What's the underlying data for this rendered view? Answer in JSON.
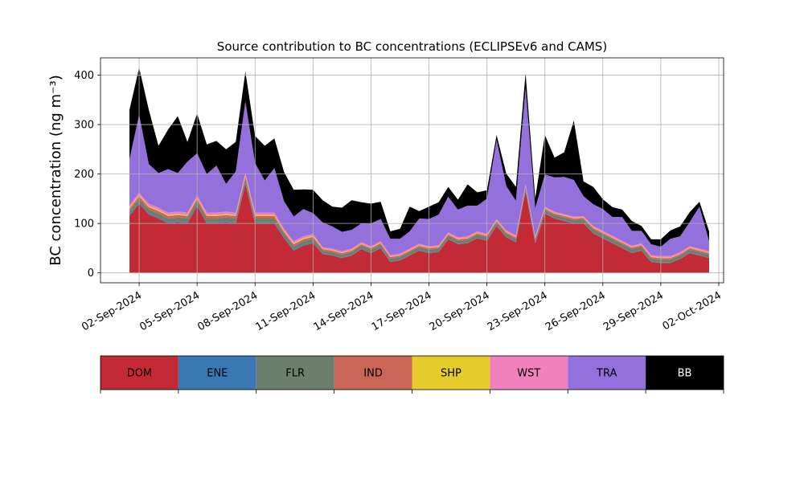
{
  "chart_data": {
    "type": "area",
    "stacked": true,
    "title": "Source contribution to BC concentrations (ECLIPSEv6 and CAMS)",
    "ylabel": "BC concentration (ng m⁻³)",
    "xlabel": "",
    "ylim": [
      -20,
      435
    ],
    "xlim": [
      "2024-08-31T00:00",
      "2024-10-02T06:00"
    ],
    "grid": true,
    "x_ticks": [
      "02-Sep-2024",
      "05-Sep-2024",
      "08-Sep-2024",
      "11-Sep-2024",
      "14-Sep-2024",
      "17-Sep-2024",
      "20-Sep-2024",
      "23-Sep-2024",
      "26-Sep-2024",
      "29-Sep-2024",
      "02-Oct-2024"
    ],
    "y_ticks": [
      0,
      100,
      200,
      300,
      400
    ],
    "x": [
      "2024-09-01T12:00",
      "2024-09-02T00:00",
      "2024-09-02T12:00",
      "2024-09-03T00:00",
      "2024-09-03T12:00",
      "2024-09-04T00:00",
      "2024-09-04T12:00",
      "2024-09-05T00:00",
      "2024-09-05T12:00",
      "2024-09-06T00:00",
      "2024-09-06T12:00",
      "2024-09-07T00:00",
      "2024-09-07T12:00",
      "2024-09-08T00:00",
      "2024-09-08T12:00",
      "2024-09-09T00:00",
      "2024-09-09T12:00",
      "2024-09-10T00:00",
      "2024-09-10T12:00",
      "2024-09-11T00:00",
      "2024-09-11T12:00",
      "2024-09-12T00:00",
      "2024-09-12T12:00",
      "2024-09-13T00:00",
      "2024-09-13T12:00",
      "2024-09-14T00:00",
      "2024-09-14T12:00",
      "2024-09-15T00:00",
      "2024-09-15T12:00",
      "2024-09-16T00:00",
      "2024-09-16T12:00",
      "2024-09-17T00:00",
      "2024-09-17T12:00",
      "2024-09-18T00:00",
      "2024-09-18T12:00",
      "2024-09-19T00:00",
      "2024-09-19T12:00",
      "2024-09-20T00:00",
      "2024-09-20T12:00",
      "2024-09-21T00:00",
      "2024-09-21T12:00",
      "2024-09-22T00:00",
      "2024-09-22T12:00",
      "2024-09-23T00:00",
      "2024-09-23T12:00",
      "2024-09-24T00:00",
      "2024-09-24T12:00",
      "2024-09-25T00:00",
      "2024-09-25T12:00",
      "2024-09-26T00:00",
      "2024-09-26T12:00",
      "2024-09-27T00:00",
      "2024-09-27T12:00",
      "2024-09-28T00:00",
      "2024-09-28T12:00",
      "2024-09-29T00:00",
      "2024-09-29T12:00",
      "2024-09-30T00:00",
      "2024-09-30T12:00",
      "2024-10-01T00:00",
      "2024-10-01T12:00"
    ],
    "series": [
      {
        "name": "DOM",
        "color": "#c42a35",
        "values": [
          115,
          140,
          118,
          110,
          100,
          102,
          100,
          135,
          100,
          100,
          102,
          100,
          180,
          100,
          100,
          100,
          70,
          45,
          55,
          60,
          38,
          35,
          30,
          35,
          48,
          40,
          50,
          22,
          25,
          35,
          45,
          40,
          42,
          68,
          58,
          60,
          70,
          65,
          95,
          72,
          62,
          165,
          60,
          120,
          110,
          105,
          100,
          100,
          80,
          70,
          60,
          50,
          40,
          45,
          22,
          20,
          20,
          28,
          40,
          35,
          30
        ]
      },
      {
        "name": "ENE",
        "color": "#3a78b4",
        "values": [
          2,
          2,
          2,
          2,
          2,
          2,
          2,
          2,
          2,
          2,
          2,
          2,
          2,
          2,
          2,
          2,
          2,
          2,
          2,
          2,
          1,
          1,
          1,
          1,
          1,
          1,
          1,
          1,
          1,
          1,
          1,
          1,
          1,
          1,
          1,
          1,
          1,
          1,
          1,
          1,
          1,
          1,
          1,
          1,
          1,
          1,
          1,
          1,
          1,
          1,
          1,
          1,
          1,
          1,
          1,
          1,
          1,
          1,
          1,
          1,
          1
        ]
      },
      {
        "name": "FLR",
        "color": "#6c7f6f",
        "values": [
          8,
          8,
          8,
          8,
          8,
          8,
          8,
          8,
          8,
          8,
          8,
          8,
          8,
          8,
          8,
          8,
          7,
          7,
          7,
          7,
          6,
          6,
          6,
          6,
          6,
          6,
          6,
          6,
          6,
          6,
          6,
          6,
          6,
          6,
          6,
          6,
          6,
          6,
          6,
          6,
          6,
          6,
          6,
          6,
          6,
          6,
          6,
          7,
          7,
          7,
          7,
          7,
          7,
          7,
          6,
          6,
          6,
          6,
          6,
          6,
          6
        ]
      },
      {
        "name": "IND",
        "color": "#c96656",
        "values": [
          5,
          5,
          5,
          5,
          5,
          5,
          5,
          5,
          5,
          5,
          5,
          5,
          5,
          5,
          5,
          5,
          4,
          4,
          4,
          4,
          3,
          3,
          3,
          3,
          3,
          3,
          3,
          3,
          3,
          3,
          3,
          3,
          3,
          3,
          3,
          3,
          3,
          3,
          3,
          3,
          3,
          3,
          3,
          3,
          3,
          3,
          3,
          3,
          3,
          3,
          3,
          3,
          3,
          3,
          3,
          3,
          3,
          3,
          3,
          3,
          3
        ]
      },
      {
        "name": "SHP",
        "color": "#e5cc2c",
        "values": [
          2,
          2,
          2,
          2,
          2,
          2,
          2,
          2,
          2,
          2,
          2,
          2,
          2,
          2,
          2,
          2,
          2,
          2,
          2,
          2,
          1,
          1,
          1,
          1,
          1,
          1,
          1,
          1,
          1,
          1,
          1,
          1,
          1,
          1,
          1,
          1,
          1,
          1,
          1,
          1,
          1,
          1,
          1,
          1,
          1,
          1,
          1,
          1,
          1,
          1,
          1,
          1,
          1,
          1,
          1,
          1,
          1,
          1,
          1,
          1,
          1
        ]
      },
      {
        "name": "WST",
        "color": "#f081be",
        "values": [
          5,
          5,
          5,
          5,
          5,
          5,
          5,
          5,
          5,
          5,
          5,
          5,
          5,
          5,
          5,
          5,
          4,
          4,
          4,
          4,
          3,
          3,
          3,
          3,
          3,
          3,
          3,
          3,
          3,
          3,
          3,
          3,
          3,
          3,
          3,
          3,
          3,
          3,
          3,
          3,
          3,
          3,
          3,
          3,
          3,
          3,
          3,
          3,
          3,
          3,
          3,
          3,
          3,
          3,
          3,
          3,
          3,
          3,
          3,
          3,
          3
        ]
      },
      {
        "name": "TRA",
        "color": "#9370db",
        "values": [
          93,
          158,
          80,
          70,
          88,
          78,
          103,
          85,
          78,
          95,
          56,
          83,
          145,
          100,
          65,
          90,
          56,
          50,
          55,
          42,
          50,
          45,
          39,
          38,
          38,
          46,
          45,
          33,
          30,
          35,
          51,
          55,
          62,
          72,
          56,
          62,
          52,
          71,
          160,
          90,
          70,
          195,
          57,
          65,
          69,
          75,
          74,
          40,
          44,
          44,
          38,
          48,
          30,
          25,
          22,
          19,
          35,
          32,
          49,
          85,
          20
        ]
      },
      {
        "name": "BB",
        "color": "#000000",
        "values": [
          100,
          95,
          110,
          55,
          80,
          115,
          40,
          80,
          60,
          50,
          70,
          60,
          60,
          55,
          70,
          60,
          59,
          54,
          40,
          47,
          45,
          40,
          49,
          60,
          43,
          40,
          35,
          15,
          20,
          50,
          15,
          25,
          25,
          20,
          20,
          43,
          27,
          17,
          10,
          25,
          28,
          30,
          20,
          80,
          40,
          50,
          120,
          30,
          35,
          20,
          20,
          15,
          20,
          10,
          10,
          15,
          17,
          20,
          20,
          10,
          20
        ]
      }
    ],
    "legend": {
      "placement": "bottom",
      "labels": [
        "DOM",
        "ENE",
        "FLR",
        "IND",
        "SHP",
        "WST",
        "TRA",
        "BB"
      ]
    }
  }
}
